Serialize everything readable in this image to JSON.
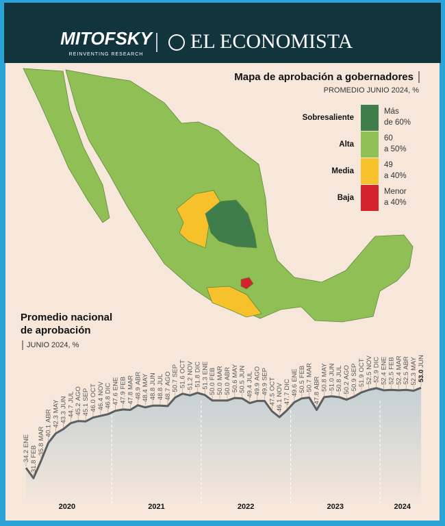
{
  "header": {
    "brand_left": "MITOFSKY",
    "brand_left_tagline": "REINVENTING RESEARCH",
    "brand_right": "EL ECONOMISTA"
  },
  "map": {
    "title": "Mapa de aprobación a gobernadores",
    "subtitle": "PROMEDIO JUNIO 2024, %",
    "legend": [
      {
        "label": "Sobresaliente",
        "range": [
          "Más",
          "de 60%"
        ],
        "color": "#3f7d4b"
      },
      {
        "label": "Alta",
        "range": [
          "60",
          "a 50%"
        ],
        "color": "#8fbf55"
      },
      {
        "label": "Media",
        "range": [
          "49",
          "a 40%"
        ],
        "color": "#f6c12a"
      },
      {
        "label": "Baja",
        "range": [
          "Menor",
          "a 40%"
        ],
        "color": "#d4232c"
      }
    ]
  },
  "chart_data": {
    "type": "area",
    "title": [
      "Promedio nacional",
      "de aprobación"
    ],
    "subtitle": "JUNIO 2024, %",
    "categories": [
      "ENE",
      "FEB",
      "MAR",
      "ABR",
      "MAY",
      "JUN",
      "JUL",
      "AGO",
      "SEP",
      "OCT",
      "NOV",
      "DIC",
      "ENE",
      "FEB",
      "MAR",
      "ABR",
      "MAY",
      "JUN",
      "JUL",
      "AGO",
      "SEP",
      "OCT",
      "NOV",
      "DIC",
      "ENE",
      "FEB",
      "MAR",
      "ABR",
      "MAY",
      "JUN",
      "JUL",
      "AGO",
      "SEP",
      "OCT",
      "NOV",
      "DIC",
      "ENE",
      "FEB",
      "MAR",
      "ABR",
      "MAY",
      "JUN",
      "JUL",
      "AGO",
      "SEP",
      "OCT",
      "NOV",
      "DIC",
      "ENE",
      "FEB",
      "MAR",
      "ABR",
      "MAY",
      "JUN"
    ],
    "values": [
      34.2,
      31.8,
      35.8,
      40.1,
      42.3,
      43.3,
      44.7,
      45.2,
      45.1,
      46.0,
      46.4,
      46.8,
      47.6,
      47.9,
      47.8,
      48.9,
      48.4,
      48.8,
      48.8,
      48.7,
      50.7,
      51.6,
      51.2,
      51.8,
      51.3,
      50.0,
      50.0,
      50.0,
      50.6,
      50.5,
      49.4,
      49.9,
      49.9,
      47.5,
      46.1,
      47.7,
      49.6,
      50.5,
      50.7,
      47.8,
      50.8,
      51.0,
      50.8,
      50.2,
      50.9,
      51.9,
      52.5,
      52.9,
      52.4,
      52.5,
      52.4,
      52.5,
      52.3,
      53.0
    ],
    "value_labels": [
      "34.2",
      "31.8",
      "35.8",
      "40.1",
      "42.3",
      "43.3",
      "44.7",
      "45.2",
      "45.1",
      "46.0",
      "46.4",
      "46.8",
      "47.6",
      "47.9",
      "47.8",
      "48.9",
      "48.4",
      "48.8",
      "48.8",
      "48.7",
      "50.7",
      "51.6",
      "51.2",
      "51.8",
      "51.3",
      "50.0",
      "50.0",
      "50.0",
      "50.6",
      "50.5",
      "49.4",
      "49.9",
      "49.9",
      "47.5",
      "46.1",
      "47.7",
      "49.6",
      "50.5",
      "50.7",
      "47.8",
      "50.8",
      "51.0",
      "50.8",
      "50.2",
      "50.9",
      "51.9",
      "52.5",
      "52.9",
      "52.4",
      "52.5",
      "52.4",
      "52.5",
      "52.3",
      "53.0"
    ],
    "years": [
      "2020",
      "2021",
      "2022",
      "2023",
      "2024"
    ],
    "ylim": [
      27,
      58
    ],
    "line_color": "#5a5f62",
    "area_color": "#c5d0d3"
  }
}
